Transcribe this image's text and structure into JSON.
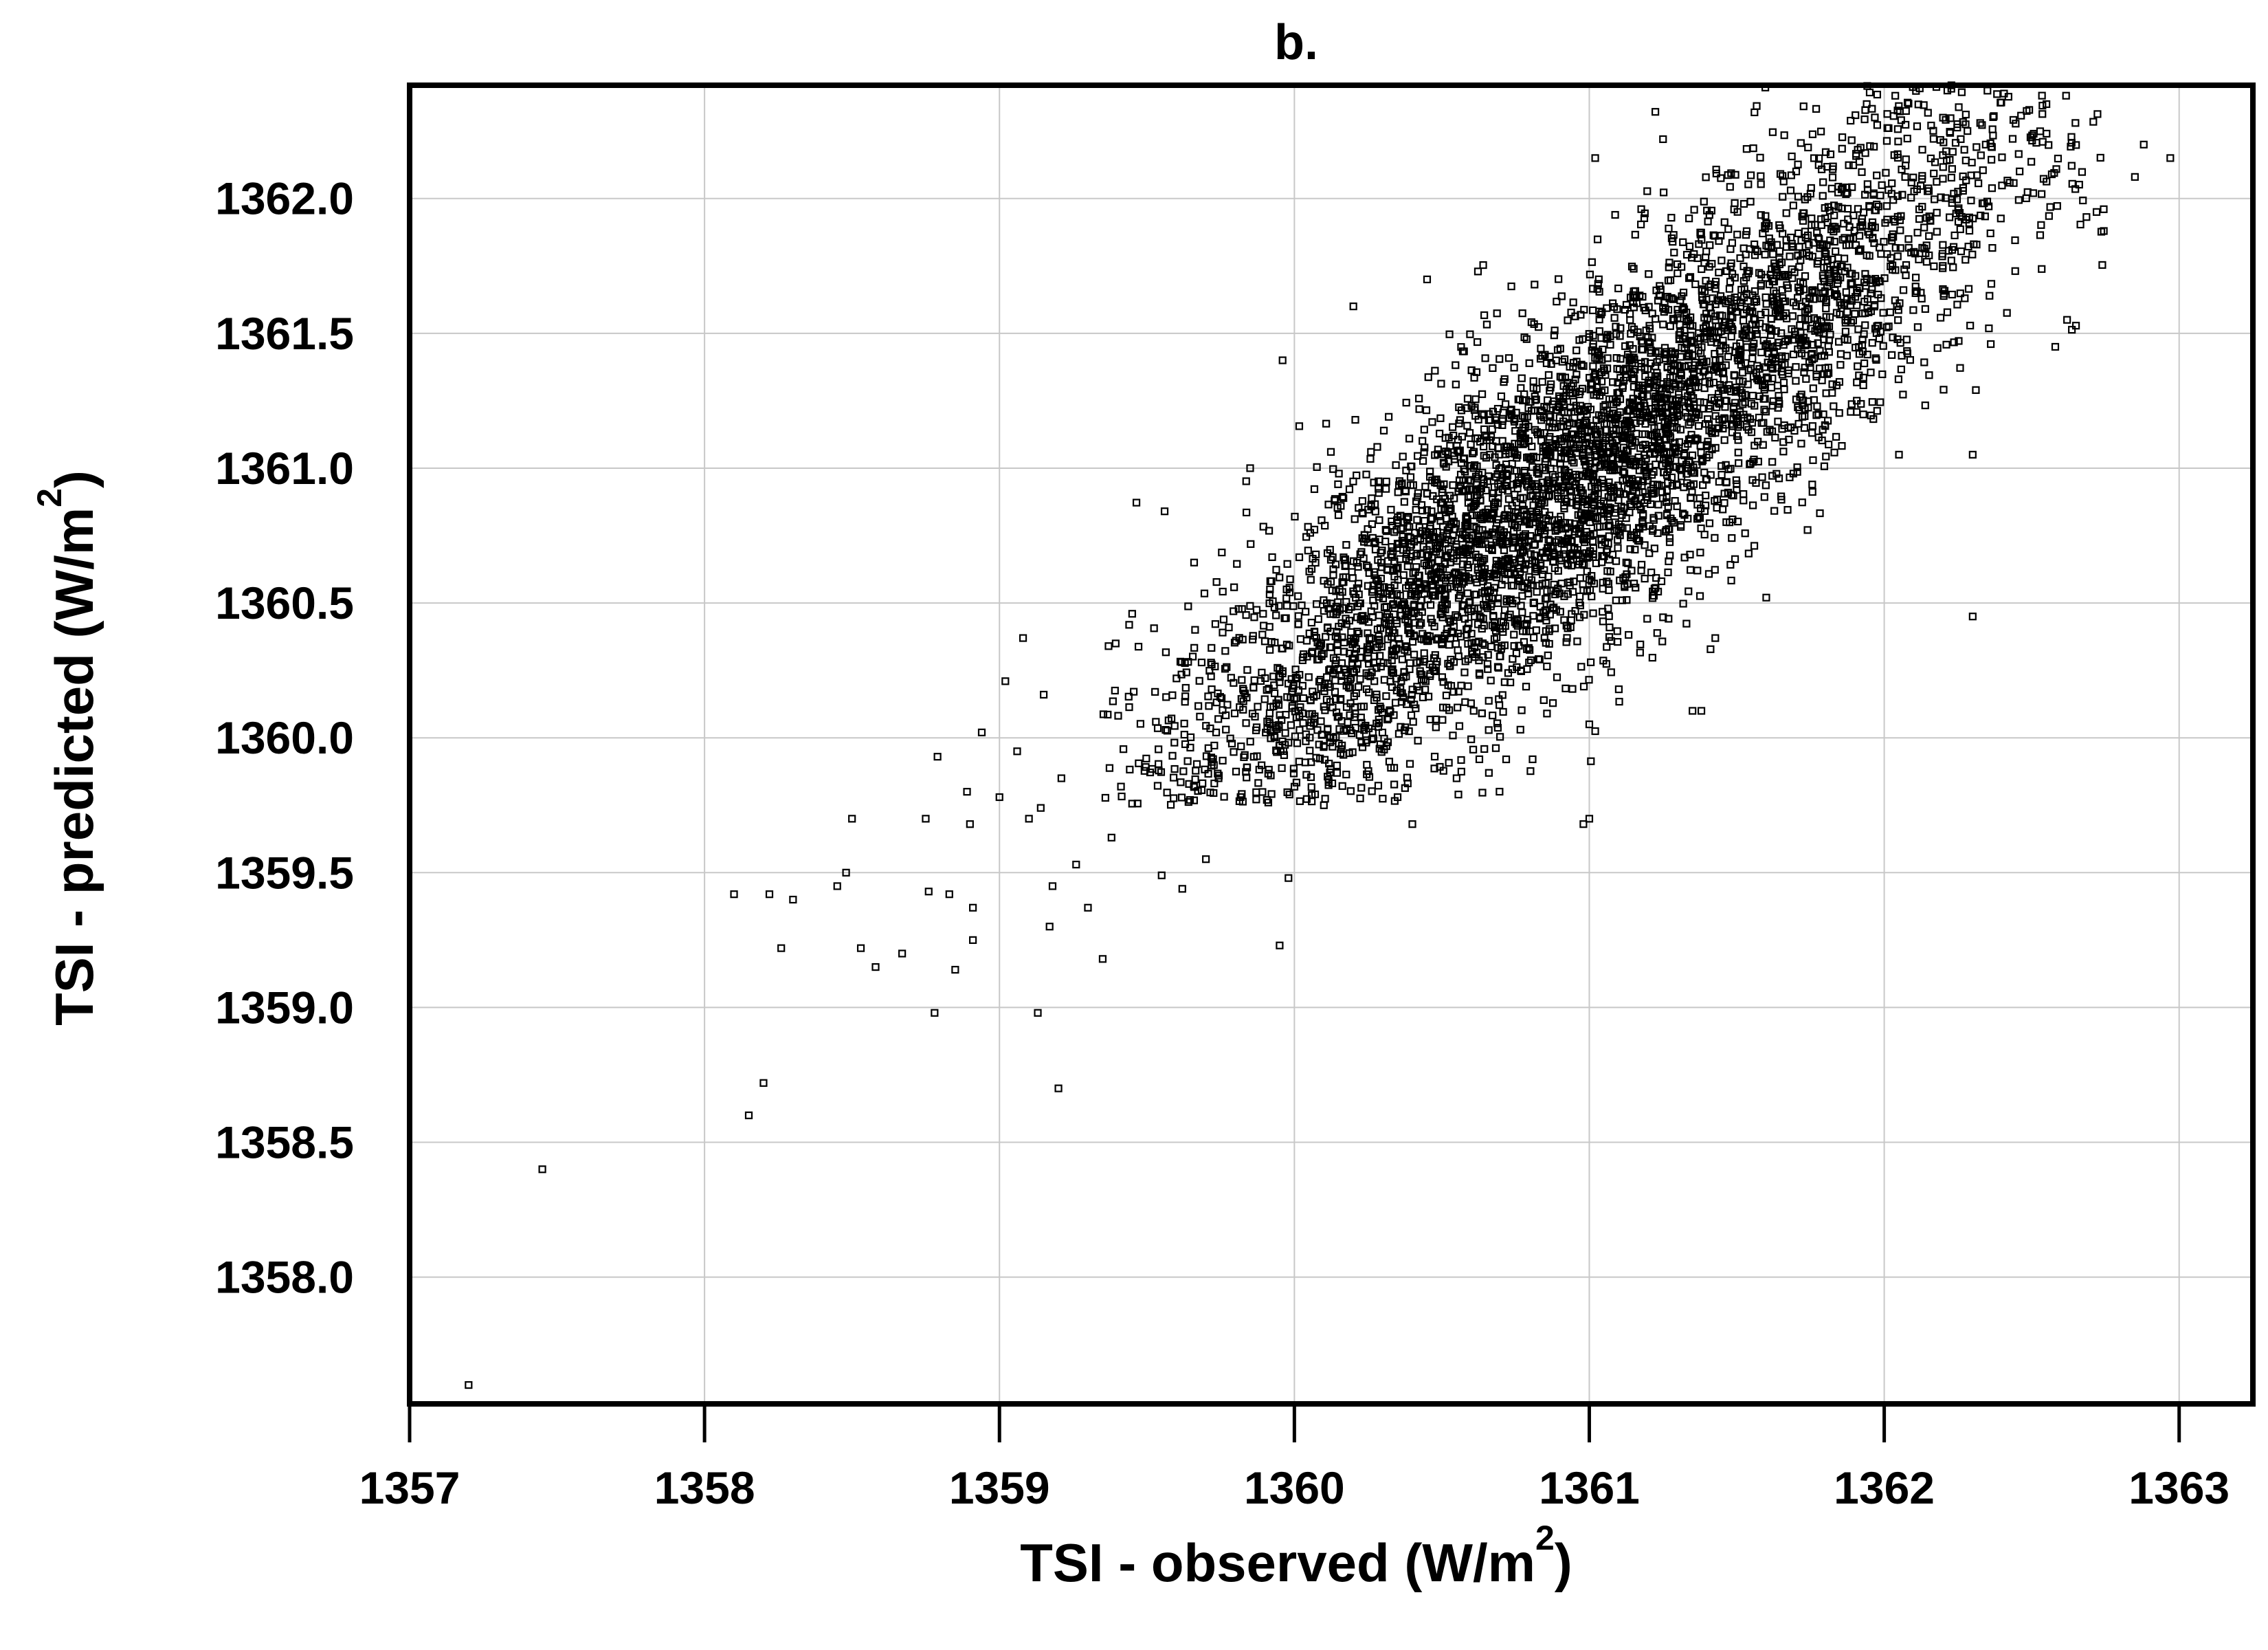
{
  "chart_data": {
    "type": "scatter",
    "title": "b.",
    "xlabel": "TSI - observed (W/m",
    "xlabel_sup": "2",
    "xlabel_end": ")",
    "ylabel": "TSI - predicted (W/m",
    "ylabel_sup": "2",
    "ylabel_end": ")",
    "xlim": [
      1357,
      1363.25
    ],
    "ylim": [
      1357.53,
      1362.42
    ],
    "xticks": [
      1357,
      1358,
      1359,
      1360,
      1361,
      1362,
      1363
    ],
    "xtick_labels": [
      "1357",
      "1358",
      "1359",
      "1360",
      "1361",
      "1362",
      "1363"
    ],
    "yticks": [
      1358.0,
      1358.5,
      1359.0,
      1359.5,
      1360.0,
      1360.5,
      1361.0,
      1361.5,
      1362.0
    ],
    "ytick_labels": [
      "1358.0",
      "1358.5",
      "1359.0",
      "1359.5",
      "1360.0",
      "1360.5",
      "1361.0",
      "1361.5",
      "1362.0"
    ],
    "grid": true,
    "marker": "open-square",
    "marker_color": "#000000",
    "points": [
      [
        1357.2,
        1357.6
      ],
      [
        1357.45,
        1358.4
      ],
      [
        1358.15,
        1358.6
      ],
      [
        1358.2,
        1358.72
      ],
      [
        1358.1,
        1359.42
      ],
      [
        1358.22,
        1359.42
      ],
      [
        1358.26,
        1359.22
      ],
      [
        1358.3,
        1359.4
      ],
      [
        1358.45,
        1359.45
      ],
      [
        1358.48,
        1359.5
      ],
      [
        1358.5,
        1359.7
      ],
      [
        1358.53,
        1359.22
      ],
      [
        1358.58,
        1359.15
      ],
      [
        1358.67,
        1359.2
      ],
      [
        1358.75,
        1359.7
      ],
      [
        1358.76,
        1359.43
      ],
      [
        1358.78,
        1358.98
      ],
      [
        1358.79,
        1359.93
      ],
      [
        1358.83,
        1359.42
      ],
      [
        1358.85,
        1359.14
      ],
      [
        1358.89,
        1359.8
      ],
      [
        1358.9,
        1359.68
      ],
      [
        1358.91,
        1359.25
      ],
      [
        1358.91,
        1359.37
      ],
      [
        1358.94,
        1360.02
      ],
      [
        1359.0,
        1359.78
      ],
      [
        1359.02,
        1360.21
      ],
      [
        1359.06,
        1359.95
      ],
      [
        1359.08,
        1360.37
      ],
      [
        1359.1,
        1359.7
      ],
      [
        1359.13,
        1358.98
      ],
      [
        1359.14,
        1359.74
      ],
      [
        1359.15,
        1360.16
      ],
      [
        1359.17,
        1359.3
      ],
      [
        1359.18,
        1359.45
      ],
      [
        1359.2,
        1358.7
      ],
      [
        1359.21,
        1359.85
      ],
      [
        1359.26,
        1359.53
      ],
      [
        1359.3,
        1359.37
      ],
      [
        1359.35,
        1359.18
      ],
      [
        1359.38,
        1359.63
      ],
      [
        1359.45,
        1360.46
      ],
      [
        1359.55,
        1359.49
      ],
      [
        1359.56,
        1360.84
      ],
      [
        1359.62,
        1359.44
      ],
      [
        1359.66,
        1360.65
      ],
      [
        1359.7,
        1359.55
      ],
      [
        1359.85,
        1361.0
      ],
      [
        1359.95,
        1359.23
      ],
      [
        1359.96,
        1361.4
      ],
      [
        1359.98,
        1359.48
      ],
      [
        1360.1,
        1359.75
      ],
      [
        1360.2,
        1361.6
      ],
      [
        1360.35,
        1359.78
      ],
      [
        1360.4,
        1359.68
      ],
      [
        1360.45,
        1361.7
      ],
      [
        1360.55,
        1359.85
      ],
      [
        1360.98,
        1359.68
      ],
      [
        1361.0,
        1359.7
      ],
      [
        1361.0,
        1360.05
      ],
      [
        1361.1,
        1360.18
      ],
      [
        1361.35,
        1360.1
      ],
      [
        1361.38,
        1360.1
      ],
      [
        1361.02,
        1362.15
      ],
      [
        1361.25,
        1362.22
      ],
      [
        1362.3,
        1360.45
      ],
      [
        1362.88,
        1362.2
      ],
      [
        1362.97,
        1362.15
      ],
      [
        1362.85,
        1362.08
      ],
      [
        1362.72,
        1361.95
      ],
      [
        1362.62,
        1361.55
      ],
      [
        1362.58,
        1361.45
      ],
      [
        1362.3,
        1361.05
      ],
      [
        1362.05,
        1361.05
      ],
      [
        1361.6,
        1360.52
      ],
      [
        1362.35,
        1362.4
      ],
      [
        1361.95,
        1362.45
      ],
      [
        1362.55,
        1362.35
      ],
      [
        1360.92,
        1360.95
      ],
      [
        1360.7,
        1360.62
      ]
    ],
    "cloud": {
      "count": 5200,
      "center": [
        1360.95,
        1360.95
      ],
      "slope": 0.82,
      "spread_along": 0.75,
      "spread_across": 0.32,
      "x_range": [
        1359.35,
        1362.75
      ],
      "y_range": [
        1359.75,
        1362.42
      ]
    }
  }
}
